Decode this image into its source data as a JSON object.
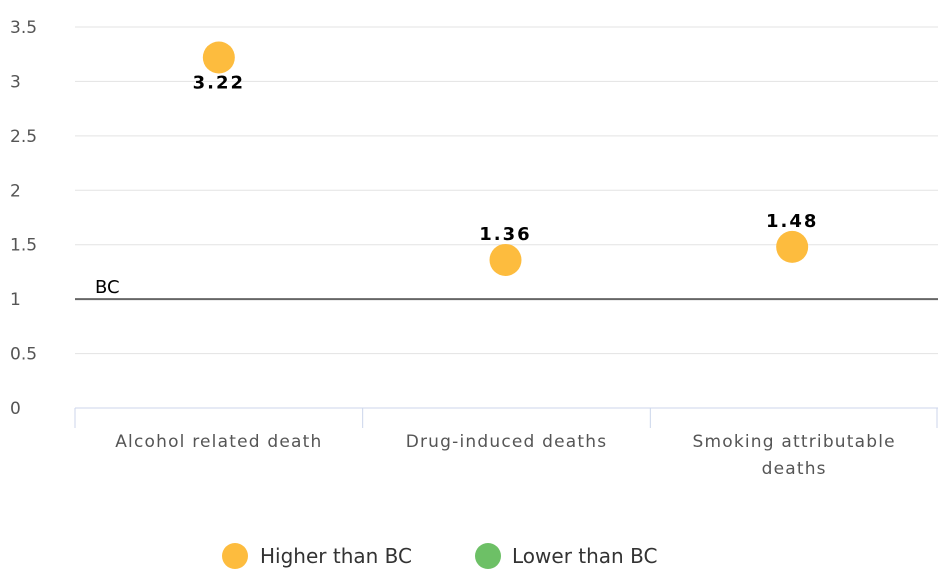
{
  "chart_data": {
    "type": "scatter",
    "categories": [
      "Alcohol related death",
      "Drug-induced deaths",
      "Smoking attributable deaths"
    ],
    "category_lines": [
      [
        "Alcohol related death"
      ],
      [
        "Drug-induced deaths"
      ],
      [
        "Smoking attributable",
        "deaths"
      ]
    ],
    "values": [
      3.22,
      1.36,
      1.48
    ],
    "data_labels": [
      "3.22",
      "1.36",
      "1.48"
    ],
    "point_series": [
      "Higher than BC",
      "Higher than BC",
      "Higher than BC"
    ],
    "ylim": [
      0,
      3.5
    ],
    "yticks": [
      0,
      0.5,
      1,
      1.5,
      2,
      2.5,
      3,
      3.5
    ],
    "ytick_labels": [
      "0",
      "0.5",
      "1",
      "1.5",
      "2",
      "2.5",
      "3",
      "3.5"
    ],
    "reference_line": {
      "value": 1,
      "label": "BC",
      "color": "#666666"
    },
    "grid": true,
    "legend_position": "bottom-center",
    "legend": [
      {
        "name": "Higher than BC",
        "color": "#FDBC3E"
      },
      {
        "name": "Lower than BC",
        "color": "#6DC066"
      }
    ],
    "title": "",
    "xlabel": "",
    "ylabel": ""
  }
}
